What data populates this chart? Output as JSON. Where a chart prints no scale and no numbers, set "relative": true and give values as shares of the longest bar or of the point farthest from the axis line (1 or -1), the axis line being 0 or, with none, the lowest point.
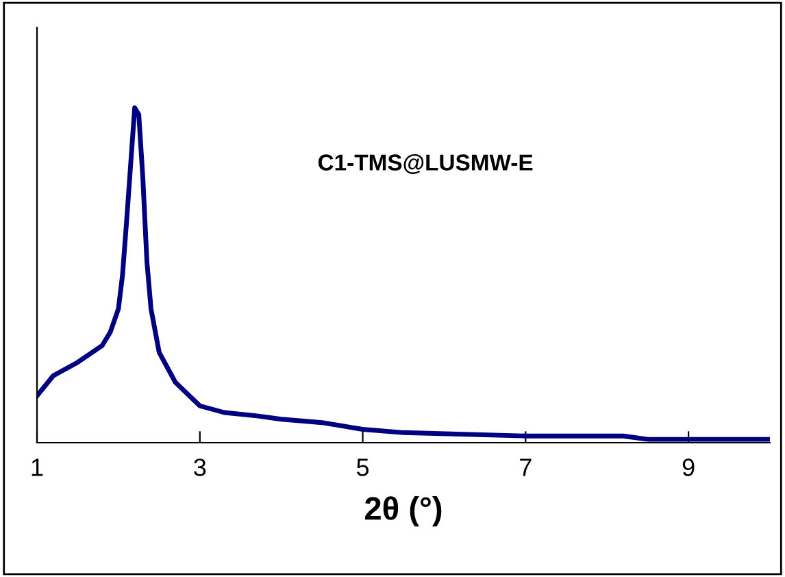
{
  "chart_data": {
    "type": "line",
    "relative": true,
    "xlabel": "2θ (°)",
    "annotations": [
      "C1-TMS@LUSMW-E"
    ],
    "xlim": [
      1,
      10
    ],
    "xticks": [
      1,
      3,
      5,
      7,
      9
    ],
    "grid": false,
    "legend": false,
    "marker": "none",
    "line_style": "solid",
    "series": [
      {
        "color": "#000080",
        "x": [
          1.0,
          1.2,
          1.5,
          1.8,
          1.9,
          2.0,
          2.05,
          2.1,
          2.15,
          2.2,
          2.25,
          2.3,
          2.35,
          2.4,
          2.5,
          2.7,
          3.0,
          3.3,
          3.7,
          4.0,
          4.5,
          5.0,
          5.5,
          7.0,
          8.2,
          8.5,
          10.0
        ],
        "values": [
          0.14,
          0.2,
          0.24,
          0.29,
          0.33,
          0.4,
          0.5,
          0.66,
          0.83,
          1.0,
          0.98,
          0.79,
          0.54,
          0.4,
          0.27,
          0.18,
          0.11,
          0.09,
          0.08,
          0.07,
          0.06,
          0.04,
          0.03,
          0.02,
          0.02,
          0.01,
          0.01
        ]
      }
    ]
  }
}
